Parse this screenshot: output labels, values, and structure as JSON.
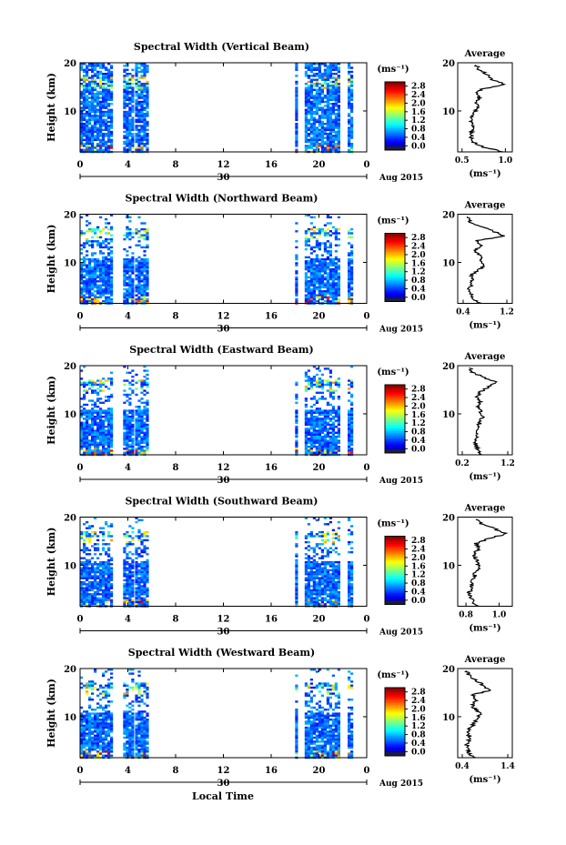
{
  "figure": {
    "x_label": "Local Time",
    "height_label": "Height (km)",
    "date_label": "Aug 2015",
    "day_label": "30",
    "avg_title": "Average",
    "avg_unit": "(ms⁻¹)",
    "cbar_unit": "(ms⁻¹)"
  },
  "chart_data": [
    {
      "type": "heatmap",
      "title": "Spectral Width (Vertical Beam)",
      "x_ticks": [
        "0",
        "4",
        "8",
        "12",
        "16",
        "20",
        "0"
      ],
      "x_values": [
        0,
        4,
        8,
        12,
        16,
        20,
        24
      ],
      "xlim": [
        0,
        24
      ],
      "y_ticks": [
        "20",
        "10"
      ],
      "y_values": [
        20,
        10
      ],
      "ylim": [
        1.5,
        20
      ],
      "colorbar_ticks": [
        "2.8",
        "2.4",
        "2.0",
        "1.6",
        "1.2",
        "0.8",
        "0.4",
        "0.0"
      ],
      "colorbar_range": [
        -0.2,
        3.0
      ],
      "data_segments": [
        [
          -0.2,
          2.6
        ],
        [
          3.6,
          4.3
        ],
        [
          4.6,
          5.6
        ],
        [
          18.0,
          18.2
        ],
        [
          18.8,
          21.6
        ],
        [
          22.4,
          22.8
        ]
      ],
      "average": {
        "ticks": [
          "0.5",
          "1.0"
        ],
        "tick_values": [
          0.5,
          1.0
        ],
        "xlim": [
          0.45,
          1.08
        ],
        "y_ticks": [
          "20",
          "10"
        ],
        "profile": [
          [
            1.5,
            0.98
          ],
          [
            2.5,
            0.74
          ],
          [
            3.5,
            0.64
          ],
          [
            4.5,
            0.61
          ],
          [
            5.5,
            0.6
          ],
          [
            6.5,
            0.62
          ],
          [
            7.5,
            0.6
          ],
          [
            8.5,
            0.62
          ],
          [
            9.5,
            0.63
          ],
          [
            10.5,
            0.68
          ],
          [
            11.5,
            0.66
          ],
          [
            12.5,
            0.7
          ],
          [
            13.5,
            0.66
          ],
          [
            14.5,
            0.73
          ],
          [
            15.5,
            1.0
          ],
          [
            16.5,
            0.83
          ],
          [
            17.5,
            0.8
          ],
          [
            18.5,
            0.7
          ],
          [
            19.5,
            0.66
          ]
        ]
      }
    },
    {
      "type": "heatmap",
      "title": "Spectral Width (Northward Beam)",
      "x_ticks": [
        "0",
        "4",
        "8",
        "12",
        "16",
        "20",
        "0"
      ],
      "x_values": [
        0,
        4,
        8,
        12,
        16,
        20,
        24
      ],
      "xlim": [
        0,
        24
      ],
      "y_ticks": [
        "20",
        "10"
      ],
      "y_values": [
        20,
        10
      ],
      "ylim": [
        1.5,
        20
      ],
      "colorbar_ticks": [
        "2.8",
        "2.4",
        "2.0",
        "1.6",
        "1.2",
        "0.8",
        "0.4",
        "0.0"
      ],
      "colorbar_range": [
        -0.2,
        3.0
      ],
      "data_segments": [
        [
          -0.2,
          2.6
        ],
        [
          3.6,
          4.3
        ],
        [
          4.6,
          5.6
        ],
        [
          18.0,
          18.2
        ],
        [
          18.8,
          21.6
        ],
        [
          22.4,
          22.8
        ]
      ],
      "average": {
        "ticks": [
          "0.4",
          "1.2"
        ],
        "tick_values": [
          0.4,
          1.2
        ],
        "xlim": [
          0.3,
          1.3
        ],
        "y_ticks": [
          "20",
          "10"
        ],
        "profile": [
          [
            1.5,
            0.7
          ],
          [
            2.5,
            0.6
          ],
          [
            3.5,
            0.55
          ],
          [
            4.5,
            0.52
          ],
          [
            5.5,
            0.55
          ],
          [
            6.5,
            0.58
          ],
          [
            7.5,
            0.55
          ],
          [
            8.5,
            0.7
          ],
          [
            9.5,
            0.8
          ],
          [
            10.5,
            0.72
          ],
          [
            11.5,
            0.7
          ],
          [
            12.5,
            0.62
          ],
          [
            13.5,
            0.75
          ],
          [
            14.5,
            0.66
          ],
          [
            15.5,
            1.15
          ],
          [
            16.5,
            0.95
          ],
          [
            17.5,
            0.7
          ],
          [
            18.5,
            0.52
          ],
          [
            19.5,
            0.48
          ]
        ]
      }
    },
    {
      "type": "heatmap",
      "title": "Spectral Width (Eastward Beam)",
      "x_ticks": [
        "0",
        "4",
        "8",
        "12",
        "16",
        "20",
        "0"
      ],
      "x_values": [
        0,
        4,
        8,
        12,
        16,
        20,
        24
      ],
      "xlim": [
        0,
        24
      ],
      "y_ticks": [
        "20",
        "10"
      ],
      "y_values": [
        20,
        10
      ],
      "ylim": [
        1.5,
        20
      ],
      "colorbar_ticks": [
        "2.8",
        "2.4",
        "2.0",
        "1.6",
        "1.2",
        "0.8",
        "0.4",
        "0.0"
      ],
      "colorbar_range": [
        -0.2,
        3.0
      ],
      "data_segments": [
        [
          -0.2,
          2.6
        ],
        [
          3.6,
          4.3
        ],
        [
          4.6,
          5.6
        ],
        [
          18.0,
          18.2
        ],
        [
          18.8,
          21.6
        ],
        [
          22.4,
          22.8
        ]
      ],
      "average": {
        "ticks": [
          "0.2",
          "1.2"
        ],
        "tick_values": [
          0.2,
          1.2
        ],
        "xlim": [
          0.1,
          1.3
        ],
        "y_ticks": [
          "20",
          "10"
        ],
        "profile": [
          [
            1.5,
            0.62
          ],
          [
            2.5,
            0.55
          ],
          [
            3.5,
            0.5
          ],
          [
            4.5,
            0.48
          ],
          [
            5.5,
            0.52
          ],
          [
            6.5,
            0.5
          ],
          [
            7.5,
            0.55
          ],
          [
            8.5,
            0.6
          ],
          [
            9.5,
            0.66
          ],
          [
            10.5,
            0.6
          ],
          [
            11.5,
            0.55
          ],
          [
            12.5,
            0.58
          ],
          [
            13.5,
            0.5
          ],
          [
            14.5,
            0.6
          ],
          [
            15.5,
            0.75
          ],
          [
            16.5,
            0.95
          ],
          [
            17.5,
            0.7
          ],
          [
            18.5,
            0.45
          ],
          [
            19.5,
            0.35
          ]
        ]
      }
    },
    {
      "type": "heatmap",
      "title": "Spectral Width (Southward Beam)",
      "x_ticks": [
        "0",
        "4",
        "8",
        "12",
        "16",
        "20",
        "0"
      ],
      "x_values": [
        0,
        4,
        8,
        12,
        16,
        20,
        24
      ],
      "xlim": [
        0,
        24
      ],
      "y_ticks": [
        "20",
        "10"
      ],
      "y_values": [
        20,
        10
      ],
      "ylim": [
        1.5,
        20
      ],
      "colorbar_ticks": [
        "2.8",
        "2.4",
        "2.0",
        "1.6",
        "1.2",
        "0.8",
        "0.4",
        "0.0"
      ],
      "colorbar_range": [
        -0.2,
        3.0
      ],
      "data_segments": [
        [
          -0.2,
          2.6
        ],
        [
          3.6,
          4.3
        ],
        [
          4.6,
          5.6
        ],
        [
          18.0,
          18.2
        ],
        [
          18.8,
          21.6
        ],
        [
          22.4,
          22.8
        ]
      ],
      "average": {
        "ticks": [
          "0.8",
          "1.0"
        ],
        "tick_values": [
          0.8,
          1.0
        ],
        "xlim": [
          0.75,
          1.08
        ],
        "y_ticks": [
          "20",
          "10"
        ],
        "profile": [
          [
            1.5,
            0.87
          ],
          [
            2.5,
            0.84
          ],
          [
            3.5,
            0.83
          ],
          [
            4.5,
            0.82
          ],
          [
            5.5,
            0.84
          ],
          [
            6.5,
            0.83
          ],
          [
            7.5,
            0.86
          ],
          [
            8.5,
            0.85
          ],
          [
            9.5,
            0.88
          ],
          [
            10.5,
            0.87
          ],
          [
            11.5,
            0.86
          ],
          [
            12.5,
            0.85
          ],
          [
            13.5,
            0.88
          ],
          [
            14.5,
            0.86
          ],
          [
            15.5,
            0.93
          ],
          [
            16.5,
            1.04
          ],
          [
            17.5,
            0.98
          ],
          [
            18.5,
            0.9
          ],
          [
            19.5,
            0.86
          ]
        ]
      }
    },
    {
      "type": "heatmap",
      "title": "Spectral Width (Westward Beam)",
      "x_ticks": [
        "0",
        "4",
        "8",
        "12",
        "16",
        "20",
        "0"
      ],
      "x_values": [
        0,
        4,
        8,
        12,
        16,
        20,
        24
      ],
      "xlim": [
        0,
        24
      ],
      "y_ticks": [
        "20",
        "10"
      ],
      "y_values": [
        20,
        10
      ],
      "ylim": [
        1.5,
        20
      ],
      "colorbar_ticks": [
        "2.8",
        "2.4",
        "2.0",
        "1.6",
        "1.2",
        "0.8",
        "0.4",
        "0.0"
      ],
      "colorbar_range": [
        -0.2,
        3.0
      ],
      "data_segments": [
        [
          -0.2,
          2.6
        ],
        [
          3.6,
          4.3
        ],
        [
          4.6,
          5.6
        ],
        [
          18.0,
          18.2
        ],
        [
          18.8,
          21.6
        ],
        [
          22.4,
          22.8
        ]
      ],
      "average": {
        "ticks": [
          "0.4",
          "1.4"
        ],
        "tick_values": [
          0.4,
          1.4
        ],
        "xlim": [
          0.3,
          1.5
        ],
        "y_ticks": [
          "20",
          "10"
        ],
        "profile": [
          [
            1.5,
            0.65
          ],
          [
            2.5,
            0.55
          ],
          [
            3.5,
            0.52
          ],
          [
            4.5,
            0.5
          ],
          [
            5.5,
            0.58
          ],
          [
            6.5,
            0.54
          ],
          [
            7.5,
            0.56
          ],
          [
            8.5,
            0.66
          ],
          [
            9.5,
            0.72
          ],
          [
            10.5,
            0.8
          ],
          [
            11.5,
            0.7
          ],
          [
            12.5,
            0.6
          ],
          [
            13.5,
            0.72
          ],
          [
            14.5,
            0.62
          ],
          [
            15.5,
            1.0
          ],
          [
            16.5,
            0.86
          ],
          [
            17.5,
            0.72
          ],
          [
            18.5,
            0.55
          ],
          [
            19.5,
            0.5
          ]
        ]
      }
    }
  ]
}
